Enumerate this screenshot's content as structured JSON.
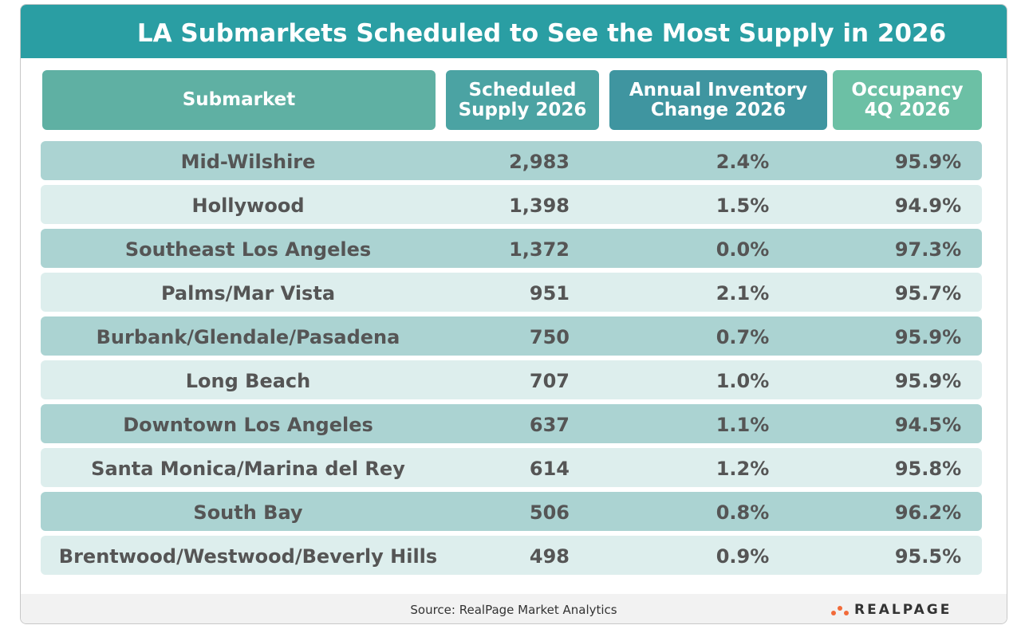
{
  "header": {
    "title": "LA Submarkets Scheduled to See the Most Supply in 2026"
  },
  "table": {
    "columns": [
      [
        "Submarket"
      ],
      [
        "Scheduled",
        "Supply 2026"
      ],
      [
        "Annual Inventory",
        "Change 2026"
      ],
      [
        "Occupancy",
        "4Q 2026"
      ]
    ],
    "rows": [
      [
        "Mid-Wilshire",
        "2,983",
        "2.4%",
        "95.9%"
      ],
      [
        "Hollywood",
        "1,398",
        "1.5%",
        "94.9%"
      ],
      [
        "Southeast Los Angeles",
        "1,372",
        "0.0%",
        "97.3%"
      ],
      [
        "Palms/Mar Vista",
        "951",
        "2.1%",
        "95.7%"
      ],
      [
        "Burbank/Glendale/Pasadena",
        "750",
        "0.7%",
        "95.9%"
      ],
      [
        "Long Beach",
        "707",
        "1.0%",
        "95.9%"
      ],
      [
        "Downtown Los Angeles",
        "637",
        "1.1%",
        "94.5%"
      ],
      [
        "Santa Monica/Marina del Rey",
        "614",
        "1.2%",
        "95.8%"
      ],
      [
        "South Bay",
        "506",
        "0.8%",
        "96.2%"
      ],
      [
        "Brentwood/Westwood/Beverly Hills",
        "498",
        "0.9%",
        "95.5%"
      ]
    ]
  },
  "footer": {
    "source": "Source:  RealPage Market Analytics",
    "logo": "REALPAGE"
  }
}
